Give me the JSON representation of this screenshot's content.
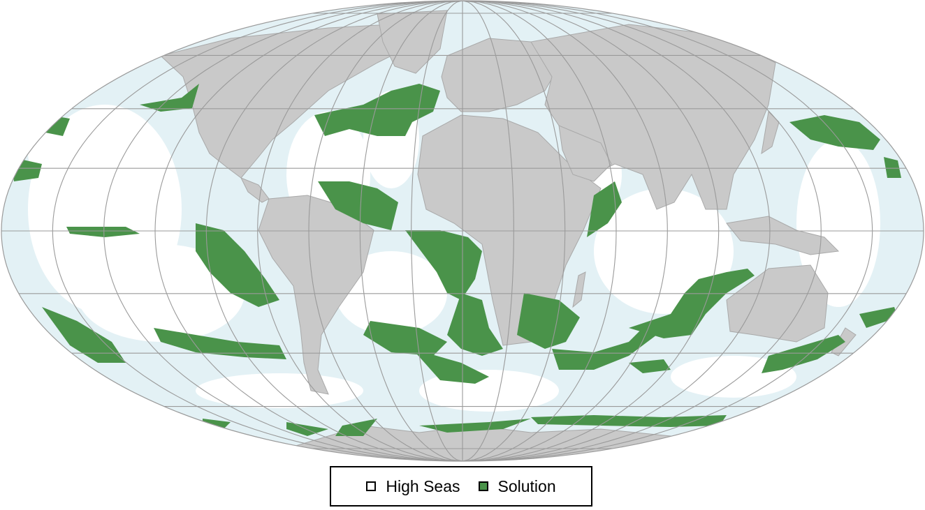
{
  "map": {
    "projection": "mollweide",
    "colors": {
      "ocean": "#e3f1f5",
      "high_seas": "#ffffff",
      "land": "#c9c9c9",
      "land_border": "#a9a9a9",
      "graticule": "#9a9a9a",
      "solution": "#4a934a"
    }
  },
  "legend": {
    "items": [
      {
        "label": "High Seas",
        "color": "#ffffff"
      },
      {
        "label": "Solution",
        "color": "#4a934a"
      }
    ]
  }
}
